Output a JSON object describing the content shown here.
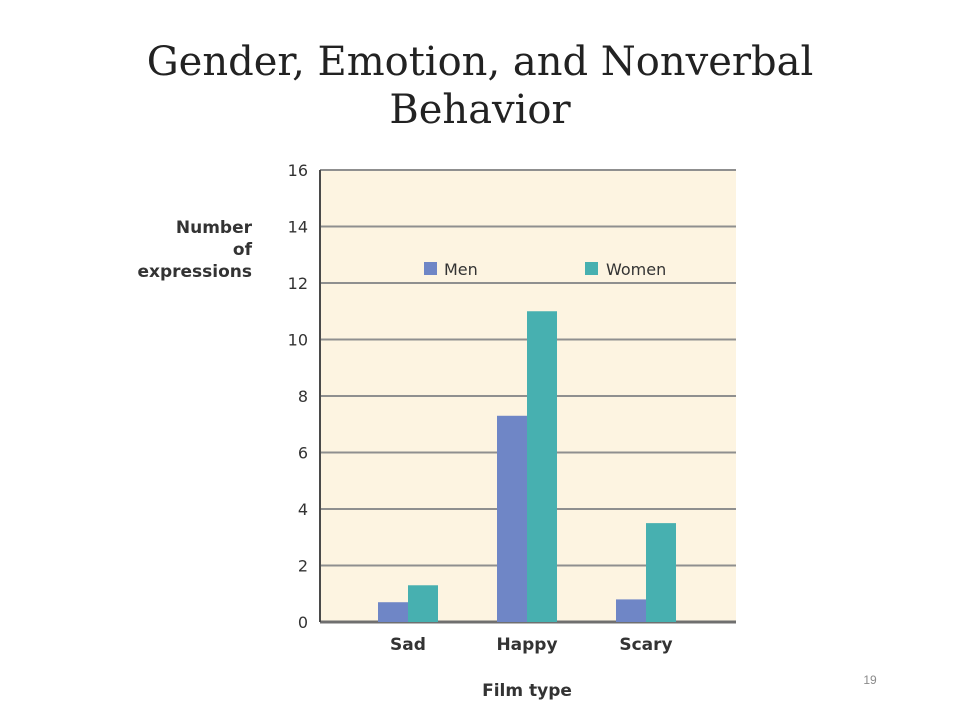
{
  "slide": {
    "title_line1": "Gender, Emotion, and Nonverbal",
    "title_line2": "Behavior",
    "page_number": "19"
  },
  "chart_data": {
    "type": "bar",
    "categories": [
      "Sad",
      "Happy",
      "Scary"
    ],
    "series": [
      {
        "name": "Men",
        "values": [
          0.7,
          7.3,
          0.8
        ],
        "color": "#6f86c6"
      },
      {
        "name": "Women",
        "values": [
          1.3,
          11.0,
          3.5
        ],
        "color": "#47b0b0"
      }
    ],
    "xlabel": "Film type",
    "ylabel_lines": [
      "Number",
      "of",
      "expressions"
    ],
    "ylim": [
      0,
      16
    ],
    "yticks": [
      0,
      2,
      4,
      6,
      8,
      10,
      12,
      14,
      16
    ],
    "grid": true,
    "legend_position": "top",
    "plot_background": "#fdf4e1",
    "gridline_color": "#8f8f8f"
  }
}
